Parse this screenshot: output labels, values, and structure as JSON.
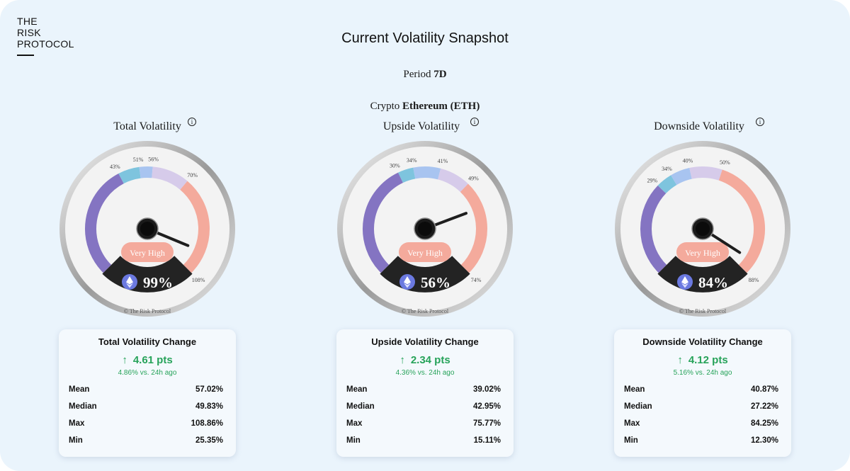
{
  "logo": {
    "line1": "THE",
    "line2": "RISK",
    "line3": "PROTOCOL"
  },
  "title": "Current Volatility Snapshot",
  "period": {
    "label": "Period",
    "value": "7D"
  },
  "crypto": {
    "label": "Crypto",
    "value": "Ethereum (ETH)"
  },
  "colors": {
    "background": "#eaf4fc",
    "zone_low": "#8474c2",
    "zone_mid_low": "#7ec4de",
    "zone_mid": "#a8c4f0",
    "zone_mid_high": "#d6cbea",
    "zone_high": "#f4aa9c",
    "positive": "#27a35a"
  },
  "gauges": [
    {
      "title": "Total Volatility",
      "info": "i",
      "level_label": "Very High",
      "value_text": "99%",
      "value": 99,
      "ticks": [
        "43%",
        "51%",
        "56%",
        "70%",
        "108%"
      ],
      "thresholds": [
        43,
        51,
        56,
        70
      ],
      "min": 0,
      "max": 108,
      "copyright": "© The Risk Protocol",
      "icon": "ethereum-icon"
    },
    {
      "title": "Upside Volatility",
      "info": "i",
      "level_label": "Very High",
      "value_text": "56%",
      "value": 56,
      "ticks": [
        "30%",
        "34%",
        "41%",
        "49%",
        "74%"
      ],
      "thresholds": [
        30,
        34,
        41,
        49
      ],
      "min": 0,
      "max": 74,
      "copyright": "© The Risk Protocol",
      "icon": "ethereum-icon"
    },
    {
      "title": "Downside Volatility",
      "info": "i",
      "level_label": "Very High",
      "value_text": "84%",
      "value": 84,
      "ticks": [
        "29%",
        "34%",
        "40%",
        "50%",
        "88%"
      ],
      "thresholds": [
        29,
        34,
        40,
        50
      ],
      "min": 0,
      "max": 88,
      "copyright": "© The Risk Protocol",
      "icon": "ethereum-icon"
    }
  ],
  "stats": [
    {
      "title": "Total Volatility Change",
      "arrow": "↑",
      "change": "4.61 pts",
      "sub": "4.86% vs. 24h ago",
      "rows": [
        {
          "k": "Mean",
          "v": "57.02%"
        },
        {
          "k": "Median",
          "v": "49.83%"
        },
        {
          "k": "Max",
          "v": "108.86%"
        },
        {
          "k": "Min",
          "v": "25.35%"
        }
      ]
    },
    {
      "title": "Upside Volatility Change",
      "arrow": "↑",
      "change": "2.34 pts",
      "sub": "4.36% vs. 24h ago",
      "rows": [
        {
          "k": "Mean",
          "v": "39.02%"
        },
        {
          "k": "Median",
          "v": "42.95%"
        },
        {
          "k": "Max",
          "v": "75.77%"
        },
        {
          "k": "Min",
          "v": "15.11%"
        }
      ]
    },
    {
      "title": "Downside Volatility Change",
      "arrow": "↑",
      "change": "4.12 pts",
      "sub": "5.16% vs. 24h ago",
      "rows": [
        {
          "k": "Mean",
          "v": "40.87%"
        },
        {
          "k": "Median",
          "v": "27.22%"
        },
        {
          "k": "Max",
          "v": "84.25%"
        },
        {
          "k": "Min",
          "v": "12.30%"
        }
      ]
    }
  ]
}
